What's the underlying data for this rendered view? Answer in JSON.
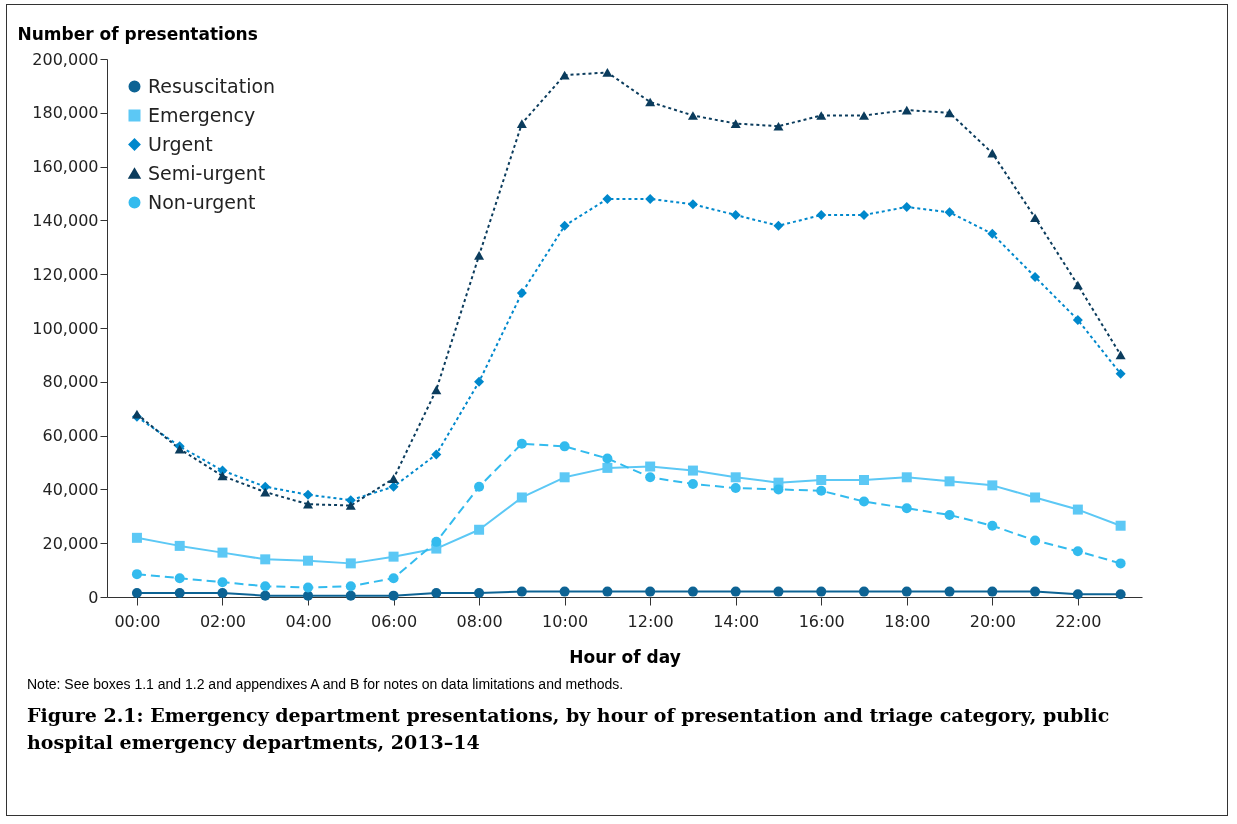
{
  "chart_data": {
    "type": "line",
    "title": "Figure 2.1: Emergency department presentations, by hour of presentation and triage category, public hospital emergency departments, 2013–14",
    "xlabel": "Hour of day",
    "ylabel": "Number of presentations",
    "annotations": [
      "Note: See boxes 1.1 and 1.2 and appendixes A and B for notes on data limitations and methods."
    ],
    "x": [
      0,
      1,
      2,
      3,
      4,
      5,
      6,
      7,
      8,
      9,
      10,
      11,
      12,
      13,
      14,
      15,
      16,
      17,
      18,
      19,
      20,
      21,
      22,
      23
    ],
    "xlim": [
      -0.7,
      23.5
    ],
    "xticks": [
      {
        "value": 0,
        "label": "00:00"
      },
      {
        "value": 2,
        "label": "02:00"
      },
      {
        "value": 4,
        "label": "04:00"
      },
      {
        "value": 6,
        "label": "06:00"
      },
      {
        "value": 8,
        "label": "08:00"
      },
      {
        "value": 10,
        "label": "10:00"
      },
      {
        "value": 12,
        "label": "12:00"
      },
      {
        "value": 14,
        "label": "14:00"
      },
      {
        "value": 16,
        "label": "16:00"
      },
      {
        "value": 18,
        "label": "18:00"
      },
      {
        "value": 20,
        "label": "20:00"
      },
      {
        "value": 22,
        "label": "22:00"
      }
    ],
    "ylim": [
      0,
      200000
    ],
    "yticks": [
      {
        "value": 0,
        "label": "0"
      },
      {
        "value": 20000,
        "label": "20,000"
      },
      {
        "value": 40000,
        "label": "40,000"
      },
      {
        "value": 60000,
        "label": "60,000"
      },
      {
        "value": 80000,
        "label": "80,000"
      },
      {
        "value": 100000,
        "label": "100,000"
      },
      {
        "value": 120000,
        "label": "120,000"
      },
      {
        "value": 140000,
        "label": "140,000"
      },
      {
        "value": 160000,
        "label": "160,000"
      },
      {
        "value": 180000,
        "label": "180,000"
      },
      {
        "value": 200000,
        "label": "200,000"
      }
    ],
    "grid": false,
    "legend": "top left",
    "series": [
      {
        "name": "Resuscitation",
        "color": "#0d6394",
        "marker": "circle",
        "line_style": "solid",
        "values": [
          1500,
          1500,
          1500,
          500,
          500,
          500,
          500,
          1500,
          1500,
          2000,
          2000,
          2000,
          2000,
          2000,
          2000,
          2000,
          2000,
          2000,
          2000,
          2000,
          2000,
          2000,
          1000,
          1000
        ]
      },
      {
        "name": "Emergency",
        "color": "#5cc8f5",
        "marker": "square",
        "line_style": "solid",
        "values": [
          22000,
          19000,
          16500,
          14000,
          13500,
          12500,
          15000,
          18000,
          25000,
          37000,
          44500,
          48000,
          48500,
          47000,
          44500,
          42500,
          43500,
          43500,
          44500,
          43000,
          41500,
          37000,
          32500,
          26500
        ]
      },
      {
        "name": "Urgent",
        "color": "#0088cc",
        "marker": "diamond",
        "line_style": "dotted",
        "values": [
          67000,
          56000,
          47000,
          41000,
          38000,
          36000,
          41000,
          53000,
          80000,
          113000,
          138000,
          148000,
          148000,
          146000,
          142000,
          138000,
          142000,
          142000,
          145000,
          143000,
          135000,
          119000,
          103000,
          83000
        ]
      },
      {
        "name": "Semi-urgent",
        "color": "#0b3c5d",
        "marker": "triangle",
        "line_style": "dotted",
        "values": [
          68000,
          55000,
          45000,
          39000,
          34500,
          34000,
          44000,
          77000,
          127000,
          176000,
          194000,
          195000,
          184000,
          179000,
          176000,
          175000,
          179000,
          179000,
          181000,
          180000,
          165000,
          141000,
          116000,
          90000
        ]
      },
      {
        "name": "Non-urgent",
        "color": "#33bbee",
        "marker": "circle",
        "line_style": "dashed",
        "values": [
          8500,
          7000,
          5500,
          4000,
          3500,
          4000,
          7000,
          20500,
          41000,
          57000,
          56000,
          51500,
          44500,
          42000,
          40500,
          40000,
          39500,
          35500,
          33000,
          30500,
          26500,
          21000,
          17000,
          12500
        ]
      }
    ]
  }
}
